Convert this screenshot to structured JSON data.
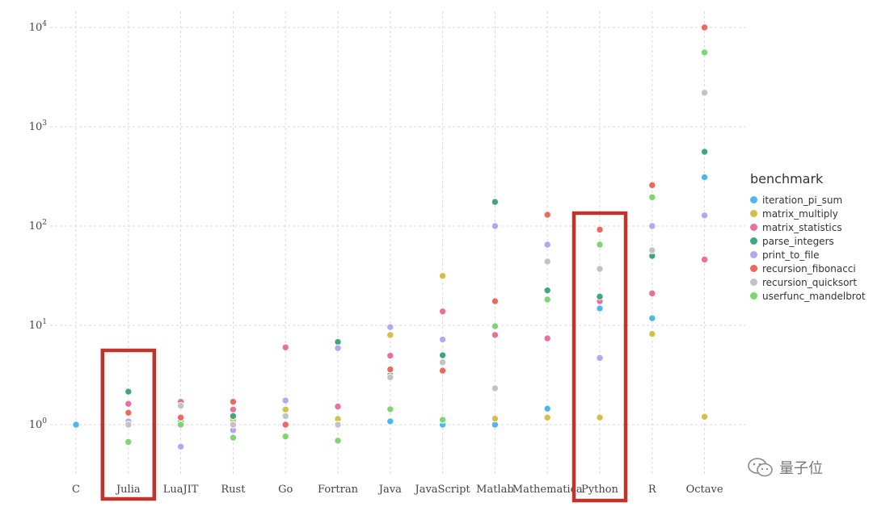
{
  "chart_data": {
    "type": "scatter",
    "yscale": "log",
    "ylim": [
      0.5,
      12000
    ],
    "y_ticks": [
      {
        "base": "10",
        "exp": "0",
        "value": 1
      },
      {
        "base": "10",
        "exp": "1",
        "value": 10
      },
      {
        "base": "10",
        "exp": "2",
        "value": 100
      },
      {
        "base": "10",
        "exp": "3",
        "value": 1000
      },
      {
        "base": "10",
        "exp": "4",
        "value": 10000
      }
    ],
    "categories": [
      "C",
      "Julia",
      "LuaJIT",
      "Rust",
      "Go",
      "Fortran",
      "Java",
      "JavaScript",
      "Matlab",
      "Mathematica",
      "Python",
      "R",
      "Octave"
    ],
    "grid": true,
    "legend_position": "right",
    "legend_title": "benchmark",
    "highlighted_categories": [
      "Julia",
      "Python"
    ],
    "series": [
      {
        "name": "iteration_pi_sum",
        "color": "#4db6ee",
        "values": [
          1.0,
          1.0,
          1.0,
          1.0,
          1.0,
          1.0,
          1.08,
          1.0,
          1.0,
          1.45,
          14.8,
          11.8,
          310
        ]
      },
      {
        "name": "matrix_multiply",
        "color": "#d4bf4a",
        "values": [
          null,
          1.0,
          1.08,
          1.1,
          1.42,
          1.14,
          8.0,
          31.5,
          1.15,
          1.18,
          1.18,
          8.2,
          1.2
        ]
      },
      {
        "name": "matrix_statistics",
        "color": "#ea6f9b",
        "values": [
          null,
          1.62,
          1.7,
          1.42,
          6.0,
          1.52,
          4.95,
          13.8,
          8.0,
          7.4,
          17.5,
          21.0,
          46.0
        ]
      },
      {
        "name": "parse_integers",
        "color": "#3ea87c",
        "values": [
          null,
          2.15,
          1.08,
          1.22,
          1.0,
          6.8,
          3.15,
          5.0,
          175,
          22.5,
          19.5,
          50.0,
          560
        ]
      },
      {
        "name": "print_to_file",
        "color": "#b6a6f0",
        "values": [
          null,
          1.08,
          0.6,
          0.88,
          1.75,
          5.9,
          9.6,
          7.2,
          100,
          65,
          4.7,
          100,
          128
        ]
      },
      {
        "name": "recursion_fibonacci",
        "color": "#ea6a5f",
        "values": [
          null,
          1.32,
          1.18,
          1.7,
          1.0,
          1.0,
          3.6,
          3.5,
          17.5,
          130,
          92,
          258,
          10000
        ]
      },
      {
        "name": "recursion_quicksort",
        "color": "#c3c3c3",
        "values": [
          null,
          1.0,
          1.55,
          1.0,
          1.22,
          1.0,
          3.0,
          4.25,
          2.32,
          44,
          37,
          57,
          2200
        ]
      },
      {
        "name": "userfunc_mandelbrot",
        "color": "#7ed673",
        "values": [
          null,
          0.67,
          1.0,
          0.74,
          0.76,
          0.69,
          1.43,
          1.12,
          9.8,
          18.2,
          65,
          195,
          5600
        ]
      }
    ]
  },
  "watermark": {
    "text": "量子位",
    "icon": "wechat-icon"
  }
}
